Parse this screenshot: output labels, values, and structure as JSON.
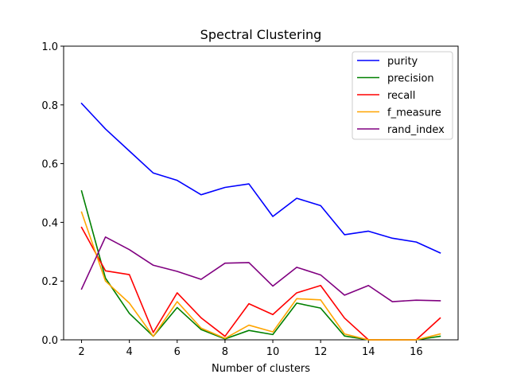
{
  "chart_data": {
    "type": "line",
    "title": "Spectral Clustering",
    "xlabel": "Number of clusters",
    "ylabel": "",
    "xlim": [
      1.25,
      17.75
    ],
    "ylim": [
      0,
      1.0
    ],
    "xticks": [
      2,
      4,
      6,
      8,
      10,
      12,
      14,
      16
    ],
    "yticks": [
      0.0,
      0.2,
      0.4,
      0.6,
      0.8,
      1.0
    ],
    "ytick_labels": [
      "0.0",
      "0.2",
      "0.4",
      "0.6",
      "0.8",
      "1.0"
    ],
    "legend_position": "top-right",
    "grid": false,
    "x": [
      2,
      3,
      4,
      5,
      6,
      7,
      8,
      9,
      10,
      11,
      12,
      13,
      14,
      15,
      16,
      17
    ],
    "series": [
      {
        "name": "purity",
        "color": "#0000ff",
        "values": [
          0.805,
          0.718,
          0.643,
          0.568,
          0.543,
          0.494,
          0.519,
          0.531,
          0.42,
          0.482,
          0.457,
          0.358,
          0.37,
          0.346,
          0.333,
          0.296
        ]
      },
      {
        "name": "precision",
        "color": "#008000",
        "values": [
          0.507,
          0.21,
          0.09,
          0.012,
          0.11,
          0.035,
          0.003,
          0.032,
          0.018,
          0.125,
          0.108,
          0.013,
          0.0,
          0.0,
          0.0,
          0.012
        ]
      },
      {
        "name": "recall",
        "color": "#ff0000",
        "values": [
          0.383,
          0.235,
          0.222,
          0.025,
          0.16,
          0.075,
          0.012,
          0.123,
          0.086,
          0.16,
          0.185,
          0.074,
          0.0,
          0.0,
          0.0,
          0.074
        ]
      },
      {
        "name": "f_measure",
        "color": "#ffa500",
        "values": [
          0.435,
          0.2,
          0.125,
          0.012,
          0.13,
          0.04,
          0.005,
          0.05,
          0.027,
          0.14,
          0.136,
          0.02,
          0.0,
          0.0,
          0.0,
          0.02
        ]
      },
      {
        "name": "rand_index",
        "color": "#800080",
        "values": [
          0.173,
          0.35,
          0.307,
          0.254,
          0.233,
          0.206,
          0.261,
          0.263,
          0.183,
          0.247,
          0.221,
          0.152,
          0.185,
          0.13,
          0.135,
          0.133
        ]
      }
    ]
  }
}
